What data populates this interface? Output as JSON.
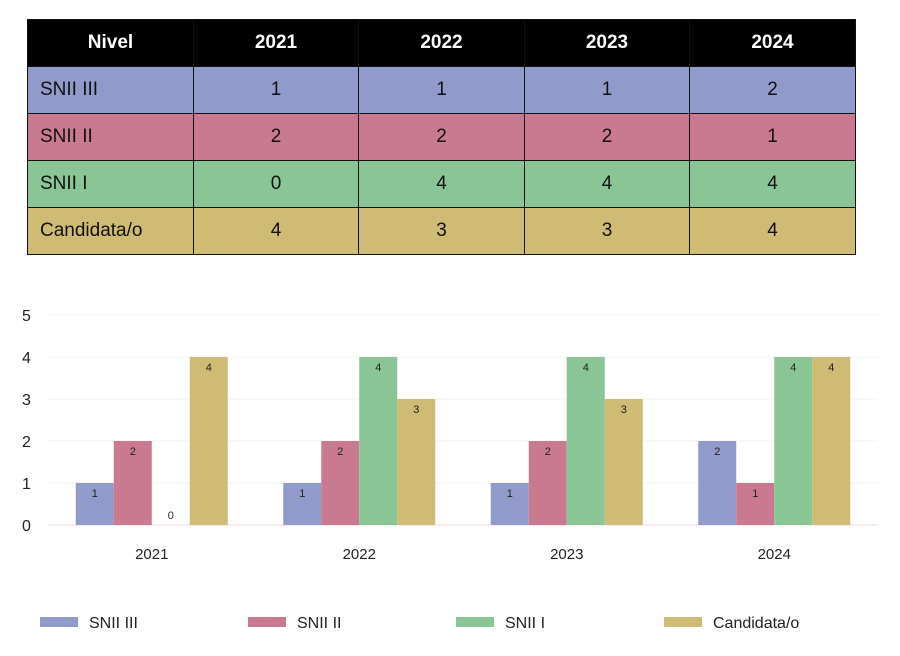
{
  "table": {
    "header": [
      "Nivel",
      "2021",
      "2022",
      "2023",
      "2024"
    ],
    "rows": [
      {
        "label": "SNII III",
        "values": [
          "1",
          "1",
          "1",
          "2"
        ],
        "color": "#909BCB"
      },
      {
        "label": "SNII II",
        "values": [
          "2",
          "2",
          "2",
          "1"
        ],
        "color": "#CA7A90"
      },
      {
        "label": "SNII I",
        "values": [
          "0",
          "4",
          "4",
          "4"
        ],
        "color": "#8AC596"
      },
      {
        "label": "Candidata/o",
        "values": [
          "4",
          "3",
          "3",
          "4"
        ],
        "color": "#CFBB73"
      }
    ]
  },
  "chart_data": {
    "type": "bar",
    "categories": [
      "2021",
      "2022",
      "2023",
      "2024"
    ],
    "series": [
      {
        "name": "SNII III",
        "values": [
          1,
          1,
          1,
          2
        ],
        "color": "#909BCB"
      },
      {
        "name": "SNII II",
        "values": [
          2,
          2,
          2,
          1
        ],
        "color": "#CA7A90"
      },
      {
        "name": "SNII I",
        "values": [
          0,
          4,
          4,
          4
        ],
        "color": "#8AC596"
      },
      {
        "name": "Candidata/o",
        "values": [
          4,
          3,
          3,
          4
        ],
        "color": "#CFBB73"
      }
    ],
    "yticks": [
      0,
      1,
      2,
      3,
      4,
      5
    ],
    "ylim": [
      0,
      5
    ],
    "title": "",
    "xlabel": "",
    "ylabel": "",
    "grid": true,
    "legend": "bottom",
    "data_labels": true
  }
}
